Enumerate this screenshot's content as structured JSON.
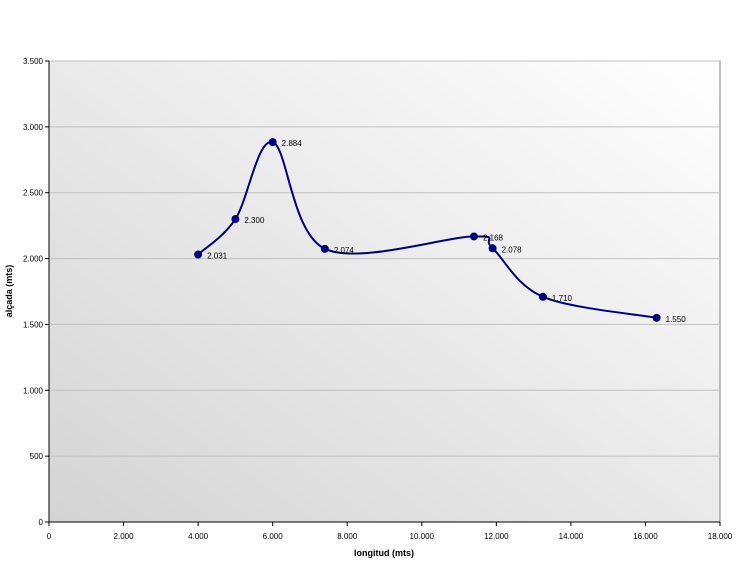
{
  "chart_data": {
    "type": "scatter",
    "title": "",
    "xlabel": "longitud (mts)",
    "ylabel": "alçada (mts)",
    "xlim": [
      0,
      18000
    ],
    "ylim": [
      0,
      3500
    ],
    "x_ticks": [
      0,
      2000,
      4000,
      6000,
      8000,
      10000,
      12000,
      14000,
      16000,
      18000
    ],
    "y_ticks": [
      0,
      500,
      1000,
      1500,
      2000,
      2500,
      3000,
      3500
    ],
    "x_tick_labels": [
      "0",
      "2.000",
      "4.000",
      "6.000",
      "8.000",
      "10.000",
      "12.000",
      "14.000",
      "16.000",
      "18.000"
    ],
    "y_tick_labels": [
      "0",
      "500",
      "1.000",
      "1.500",
      "2.000",
      "2.500",
      "3.000",
      "3.500"
    ],
    "grid": "horizontal",
    "smoothed_line": true,
    "series": [
      {
        "x": [
          4000,
          5000,
          6000,
          7400,
          11400,
          11900,
          13250,
          16300
        ],
        "y": [
          2031,
          2300,
          2884,
          2074,
          2168,
          2078,
          1710,
          1550
        ],
        "labels": [
          "2.031",
          "2.300",
          "2.884",
          "2.074",
          "2.168",
          "2.078",
          "1.710",
          "1.550"
        ]
      }
    ],
    "colors": {
      "line": "#000080",
      "marker": "#000080",
      "grid": "#c0c0c0",
      "plot_bg_light": "#ffffff",
      "plot_bg_dark": "#d4d4d4"
    }
  }
}
